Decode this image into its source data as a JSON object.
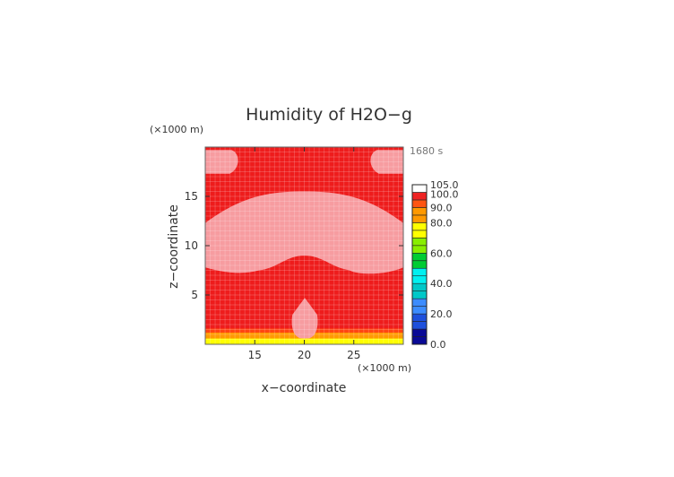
{
  "chart_data": {
    "type": "heatmap",
    "title": "Humidity of H2O−g",
    "xlabel": "x−coordinate",
    "ylabel": "z−coordinate",
    "x_unit": "(×1000 m)",
    "y_unit": "(×1000 m)",
    "time_label": "1680 s",
    "xlim": [
      10,
      30
    ],
    "ylim": [
      0,
      20
    ],
    "x_ticks": [
      15,
      20,
      25
    ],
    "y_ticks": [
      5,
      10,
      15
    ],
    "grid": true,
    "colorbar": {
      "levels": [
        0,
        10,
        20,
        30,
        40,
        50,
        60,
        70,
        80,
        90,
        100,
        105
      ],
      "labels": [
        "0.0",
        "20.0",
        "40.0",
        "60.0",
        "80.0",
        "90.0",
        "100.0",
        "105.0"
      ],
      "label_values": [
        0,
        20,
        40,
        60,
        80,
        90,
        100,
        105
      ],
      "colors": [
        "#0a0a96",
        "#1e50dc",
        "#3c8cff",
        "#00c8c8",
        "#00f0f0",
        "#00cc33",
        "#88ee00",
        "#ffff00",
        "#ff9900",
        "#ff4411",
        "#ffffff"
      ]
    },
    "fields": {
      "base_value": 100,
      "saturated_value": 102,
      "saturated_regions": [
        {
          "name": "upper-left-patch",
          "x_range": [
            10,
            13.2
          ],
          "z_range": [
            17.3,
            19.7
          ]
        },
        {
          "name": "upper-right-patch",
          "x_range": [
            26.8,
            30
          ],
          "z_range": [
            17.3,
            19.7
          ]
        },
        {
          "name": "mid-level-cloud",
          "x_range": [
            10,
            30
          ],
          "z_range": [
            7,
            15.5
          ]
        },
        {
          "name": "central-plume",
          "x_range": [
            18.8,
            21.3
          ],
          "z_range": [
            0.6,
            4.7
          ]
        }
      ],
      "low_level_gradient": [
        {
          "z": 0,
          "value": 75
        },
        {
          "z": 0.6,
          "value": 82
        },
        {
          "z": 1.2,
          "value": 92
        },
        {
          "z": 1.6,
          "value": 100
        }
      ]
    }
  }
}
